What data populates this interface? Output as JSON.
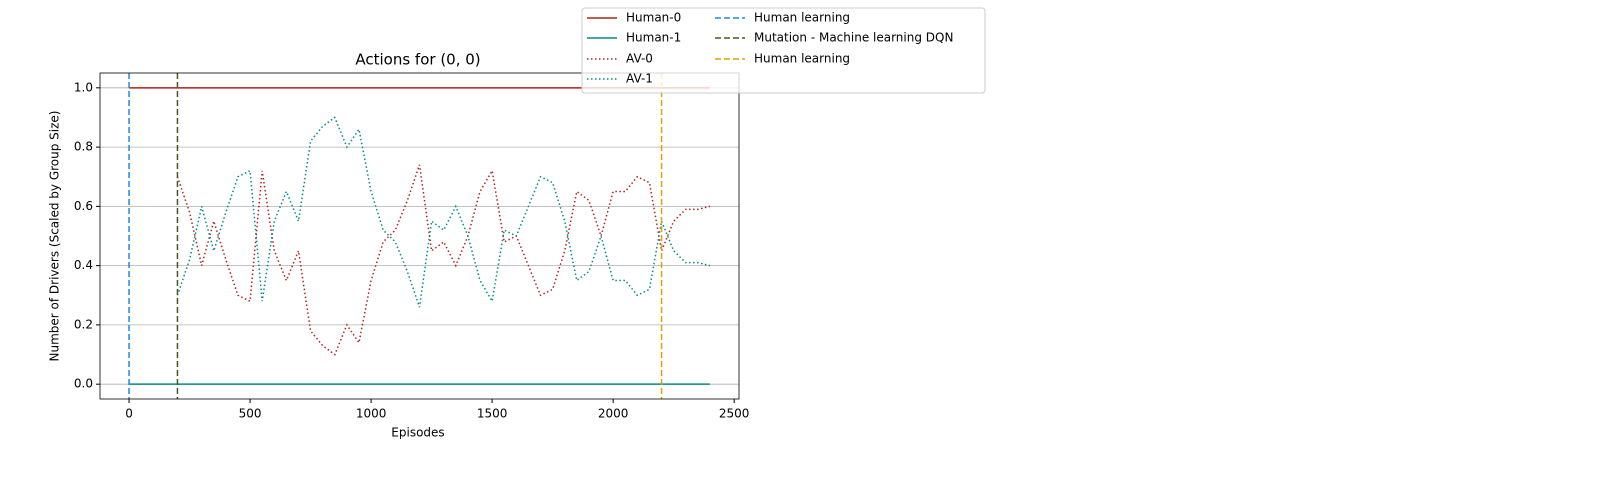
{
  "chart_data": {
    "type": "line",
    "title": "Actions for (0, 0)",
    "xlabel": "Episodes",
    "ylabel": "Number of Drivers (Scaled by Group Size)",
    "xlim": [
      -120,
      2520
    ],
    "ylim": [
      -0.05,
      1.05
    ],
    "xticks": [
      0,
      500,
      1000,
      1500,
      2000,
      2500
    ],
    "yticks": [
      {
        "value": 0,
        "label": "0.0"
      },
      {
        "value": 0.2,
        "label": "0.2"
      },
      {
        "value": 0.4,
        "label": "0.4"
      },
      {
        "value": 0.6,
        "label": "0.6"
      },
      {
        "value": 0.8,
        "label": "0.8"
      },
      {
        "value": 1,
        "label": "1.0"
      }
    ],
    "grid": "y",
    "legend": "upper right outside",
    "series": [
      {
        "name": "Human-0",
        "color": "#b2221b",
        "linestyle": "solid",
        "x": [
          0,
          2400
        ],
        "values": [
          1,
          1
        ]
      },
      {
        "name": "Human-1",
        "color": "#008b8b",
        "linestyle": "solid",
        "x": [
          0,
          2400
        ],
        "values": [
          0,
          0
        ]
      },
      {
        "name": "AV-0",
        "color": "#b2221b",
        "linestyle": "dotted",
        "x": [
          200,
          250,
          300,
          350,
          400,
          450,
          500,
          550,
          600,
          650,
          700,
          750,
          800,
          850,
          900,
          950,
          1000,
          1050,
          1100,
          1150,
          1200,
          1250,
          1300,
          1350,
          1400,
          1450,
          1500,
          1550,
          1600,
          1650,
          1700,
          1750,
          1800,
          1850,
          1900,
          1950,
          2000,
          2050,
          2100,
          2150,
          2200,
          2250,
          2300,
          2350,
          2400
        ],
        "values": [
          0.7,
          0.58,
          0.4,
          0.55,
          0.42,
          0.3,
          0.28,
          0.72,
          0.45,
          0.35,
          0.45,
          0.18,
          0.13,
          0.1,
          0.2,
          0.14,
          0.35,
          0.48,
          0.52,
          0.62,
          0.74,
          0.45,
          0.48,
          0.4,
          0.5,
          0.65,
          0.72,
          0.48,
          0.5,
          0.4,
          0.3,
          0.32,
          0.45,
          0.65,
          0.62,
          0.5,
          0.65,
          0.65,
          0.7,
          0.68,
          0.45,
          0.55,
          0.59,
          0.59,
          0.6
        ]
      },
      {
        "name": "AV-1",
        "color": "#008b8b",
        "linestyle": "dotted",
        "x": [
          200,
          250,
          300,
          350,
          400,
          450,
          500,
          550,
          600,
          650,
          700,
          750,
          800,
          850,
          900,
          950,
          1000,
          1050,
          1100,
          1150,
          1200,
          1250,
          1300,
          1350,
          1400,
          1450,
          1500,
          1550,
          1600,
          1650,
          1700,
          1750,
          1800,
          1850,
          1900,
          1950,
          2000,
          2050,
          2100,
          2150,
          2200,
          2250,
          2300,
          2350,
          2400
        ],
        "values": [
          0.3,
          0.42,
          0.6,
          0.45,
          0.58,
          0.7,
          0.72,
          0.28,
          0.55,
          0.65,
          0.55,
          0.82,
          0.87,
          0.9,
          0.8,
          0.86,
          0.65,
          0.52,
          0.48,
          0.38,
          0.26,
          0.55,
          0.52,
          0.6,
          0.5,
          0.35,
          0.28,
          0.52,
          0.5,
          0.6,
          0.7,
          0.68,
          0.55,
          0.35,
          0.38,
          0.5,
          0.35,
          0.35,
          0.3,
          0.32,
          0.55,
          0.45,
          0.41,
          0.41,
          0.4
        ]
      }
    ],
    "vlines": [
      {
        "name": "Human learning",
        "color": "#1e88e5",
        "x": 0
      },
      {
        "name": "Mutation - Machine learning DQN",
        "color": "#4b5320",
        "x": 200
      },
      {
        "name": "Human learning",
        "color": "#e69f00",
        "x": 2200
      }
    ]
  }
}
